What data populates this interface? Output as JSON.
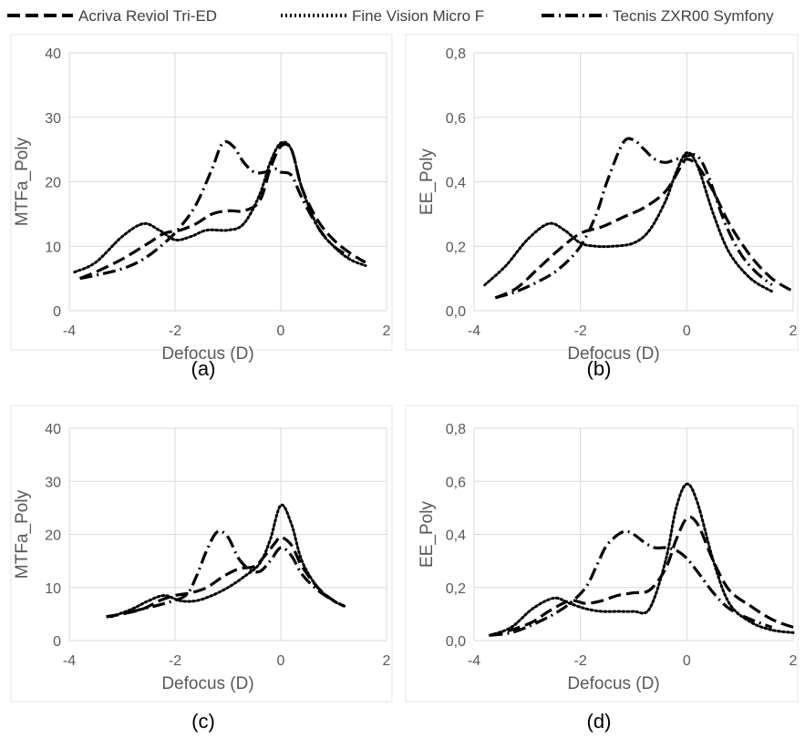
{
  "legend": [
    {
      "name": "Acriva Reviol Tri-ED",
      "dash": "14 6"
    },
    {
      "name": "Fine Vision Micro F",
      "dash": "2 3"
    },
    {
      "name": "Tecnis ZXR00 Symfony",
      "dash": "14 5 2 5"
    }
  ],
  "captions": [
    "(a)",
    "(b)",
    "(c)",
    "(d)"
  ],
  "chart_data": [
    {
      "type": "line",
      "xlabel": "Defocus (D)",
      "ylabel": "MTFa_Poly",
      "xlim": [
        -4,
        2
      ],
      "xticks": [
        "-4",
        "-2",
        "0",
        "2"
      ],
      "ylim": [
        0,
        40
      ],
      "yticks": [
        "0",
        "10",
        "20",
        "30",
        "40"
      ],
      "grid": true,
      "series": [
        {
          "name": "Acriva Reviol Tri-ED",
          "x": [
            -3.8,
            -3.5,
            -3.0,
            -2.5,
            -2.2,
            -1.9,
            -1.6,
            -1.3,
            -1.0,
            -0.7,
            -0.4,
            -0.2,
            0.0,
            0.2,
            0.4,
            0.7,
            1.0,
            1.3,
            1.6
          ],
          "y": [
            5.0,
            6.0,
            8.0,
            10.5,
            12.0,
            12.5,
            13.5,
            15.0,
            15.5,
            15.5,
            17.0,
            22.0,
            25.5,
            25.0,
            19.0,
            14.0,
            11.0,
            9.0,
            7.5
          ]
        },
        {
          "name": "Fine Vision Micro F",
          "x": [
            -3.9,
            -3.5,
            -3.0,
            -2.6,
            -2.3,
            -2.0,
            -1.7,
            -1.4,
            -1.0,
            -0.7,
            -0.4,
            -0.2,
            0.0,
            0.2,
            0.4,
            0.7,
            1.0,
            1.3,
            1.6
          ],
          "y": [
            6.0,
            7.5,
            11.5,
            13.5,
            12.5,
            11.0,
            11.5,
            12.5,
            12.5,
            13.5,
            18.0,
            23.0,
            26.0,
            25.0,
            19.0,
            13.0,
            10.0,
            8.0,
            7.0
          ]
        },
        {
          "name": "Tecnis ZXR00 Symfony",
          "x": [
            -3.8,
            -3.5,
            -3.0,
            -2.6,
            -2.2,
            -1.9,
            -1.6,
            -1.3,
            -1.1,
            -0.9,
            -0.7,
            -0.5,
            -0.3,
            -0.1,
            0.0,
            0.2,
            0.4,
            0.7,
            1.0,
            1.3
          ],
          "y": [
            5.0,
            5.5,
            6.5,
            8.0,
            10.5,
            13.0,
            16.5,
            22.0,
            26.0,
            25.5,
            23.0,
            21.5,
            21.5,
            22.0,
            21.5,
            21.0,
            17.5,
            13.0,
            10.0,
            8.5
          ]
        }
      ]
    },
    {
      "type": "line",
      "xlabel": "Defocus (D)",
      "ylabel": "EE_Poly",
      "xlim": [
        -4,
        2
      ],
      "xticks": [
        "-4",
        "-2",
        "0",
        "2"
      ],
      "ylim": [
        0,
        0.8
      ],
      "yticks": [
        "0,0",
        "0,2",
        "0,4",
        "0,6",
        "0,8"
      ],
      "grid": true,
      "series": [
        {
          "name": "Acriva Reviol Tri-ED",
          "x": [
            -3.6,
            -3.2,
            -2.8,
            -2.4,
            -2.0,
            -1.6,
            -1.2,
            -0.8,
            -0.4,
            -0.1,
            0.0,
            0.2,
            0.5,
            0.8,
            1.2,
            1.6,
            2.0
          ],
          "y": [
            0.04,
            0.07,
            0.13,
            0.19,
            0.24,
            0.26,
            0.29,
            0.32,
            0.37,
            0.45,
            0.47,
            0.45,
            0.37,
            0.27,
            0.17,
            0.1,
            0.06
          ]
        },
        {
          "name": "Fine Vision Micro F",
          "x": [
            -3.8,
            -3.4,
            -3.0,
            -2.6,
            -2.3,
            -2.0,
            -1.7,
            -1.4,
            -1.0,
            -0.7,
            -0.4,
            -0.2,
            0.0,
            0.2,
            0.5,
            0.8,
            1.2,
            1.6
          ],
          "y": [
            0.08,
            0.14,
            0.22,
            0.27,
            0.25,
            0.21,
            0.2,
            0.2,
            0.21,
            0.25,
            0.34,
            0.43,
            0.49,
            0.45,
            0.3,
            0.18,
            0.1,
            0.06
          ]
        },
        {
          "name": "Tecnis ZXR00 Symfony",
          "x": [
            -3.6,
            -3.2,
            -2.8,
            -2.4,
            -2.0,
            -1.7,
            -1.5,
            -1.2,
            -1.0,
            -0.8,
            -0.6,
            -0.4,
            -0.2,
            0.0,
            0.2,
            0.4,
            0.7,
            1.0,
            1.3,
            1.6
          ],
          "y": [
            0.04,
            0.06,
            0.09,
            0.13,
            0.2,
            0.3,
            0.4,
            0.52,
            0.53,
            0.5,
            0.47,
            0.46,
            0.47,
            0.48,
            0.48,
            0.42,
            0.28,
            0.18,
            0.12,
            0.08
          ]
        }
      ]
    },
    {
      "type": "line",
      "xlabel": "Defocus (D)",
      "ylabel": "MTFa_Poly",
      "xlim": [
        -4,
        2
      ],
      "xticks": [
        "-4",
        "-2",
        "0",
        "2"
      ],
      "ylim": [
        0,
        40
      ],
      "yticks": [
        "0",
        "10",
        "20",
        "30",
        "40"
      ],
      "grid": true,
      "series": [
        {
          "name": "Acriva Reviol Tri-ED",
          "x": [
            -3.3,
            -3.0,
            -2.6,
            -2.3,
            -2.0,
            -1.7,
            -1.4,
            -1.1,
            -0.8,
            -0.5,
            -0.3,
            -0.1,
            0.0,
            0.2,
            0.4,
            0.7,
            1.0,
            1.2
          ],
          "y": [
            4.5,
            5.0,
            6.0,
            7.5,
            8.5,
            9.0,
            10.0,
            12.0,
            13.5,
            14.0,
            16.0,
            18.5,
            19.5,
            18.0,
            14.0,
            10.0,
            7.5,
            6.5
          ]
        },
        {
          "name": "Fine Vision Micro F",
          "x": [
            -3.2,
            -2.8,
            -2.5,
            -2.2,
            -1.9,
            -1.6,
            -1.3,
            -1.0,
            -0.7,
            -0.4,
            -0.2,
            0.0,
            0.2,
            0.4,
            0.7,
            1.0,
            1.2
          ],
          "y": [
            4.5,
            6.0,
            7.5,
            8.5,
            7.5,
            7.5,
            8.5,
            10.0,
            12.0,
            14.5,
            19.0,
            25.5,
            22.0,
            15.0,
            10.0,
            7.5,
            6.5
          ]
        },
        {
          "name": "Tecnis ZXR00 Symfony",
          "x": [
            -3.3,
            -3.0,
            -2.6,
            -2.2,
            -1.8,
            -1.6,
            -1.4,
            -1.2,
            -1.0,
            -0.8,
            -0.6,
            -0.4,
            -0.2,
            0.0,
            0.2,
            0.4,
            0.7,
            1.0,
            1.2
          ],
          "y": [
            4.5,
            5.0,
            6.0,
            7.0,
            8.5,
            12.0,
            17.0,
            20.5,
            19.5,
            15.5,
            13.5,
            13.0,
            15.0,
            17.5,
            16.0,
            12.5,
            9.5,
            7.5,
            6.5
          ]
        }
      ]
    },
    {
      "type": "line",
      "xlabel": "Defocus (D)",
      "ylabel": "EE_Poly",
      "xlim": [
        -4,
        2
      ],
      "xticks": [
        "-4",
        "-2",
        "0",
        "2"
      ],
      "ylim": [
        0,
        0.8
      ],
      "yticks": [
        "0,0",
        "0,2",
        "0,4",
        "0,6",
        "0,8"
      ],
      "grid": true,
      "series": [
        {
          "name": "Acriva Reviol Tri-ED",
          "x": [
            -3.7,
            -3.3,
            -2.9,
            -2.6,
            -2.2,
            -1.9,
            -1.6,
            -1.3,
            -1.0,
            -0.7,
            -0.4,
            -0.2,
            0.0,
            0.2,
            0.5,
            0.8,
            1.2,
            1.6,
            2.0
          ],
          "y": [
            0.02,
            0.04,
            0.07,
            0.11,
            0.15,
            0.14,
            0.15,
            0.17,
            0.18,
            0.19,
            0.27,
            0.38,
            0.46,
            0.44,
            0.3,
            0.19,
            0.13,
            0.08,
            0.05
          ]
        },
        {
          "name": "Fine Vision Micro F",
          "x": [
            -3.7,
            -3.3,
            -2.9,
            -2.5,
            -2.2,
            -1.9,
            -1.6,
            -1.3,
            -1.0,
            -0.7,
            -0.4,
            -0.2,
            0.0,
            0.2,
            0.5,
            0.8,
            1.2,
            1.6,
            2.0
          ],
          "y": [
            0.02,
            0.05,
            0.12,
            0.16,
            0.14,
            0.12,
            0.11,
            0.11,
            0.11,
            0.12,
            0.3,
            0.5,
            0.59,
            0.52,
            0.3,
            0.14,
            0.07,
            0.04,
            0.03
          ]
        },
        {
          "name": "Tecnis ZXR00 Symfony",
          "x": [
            -3.7,
            -3.3,
            -2.9,
            -2.5,
            -2.2,
            -1.9,
            -1.7,
            -1.5,
            -1.2,
            -1.0,
            -0.8,
            -0.6,
            -0.4,
            -0.2,
            0.0,
            0.2,
            0.5,
            0.8,
            1.2,
            1.6
          ],
          "y": [
            0.02,
            0.03,
            0.06,
            0.1,
            0.14,
            0.2,
            0.28,
            0.36,
            0.41,
            0.4,
            0.37,
            0.35,
            0.35,
            0.34,
            0.31,
            0.26,
            0.18,
            0.12,
            0.08,
            0.05
          ]
        }
      ]
    }
  ]
}
